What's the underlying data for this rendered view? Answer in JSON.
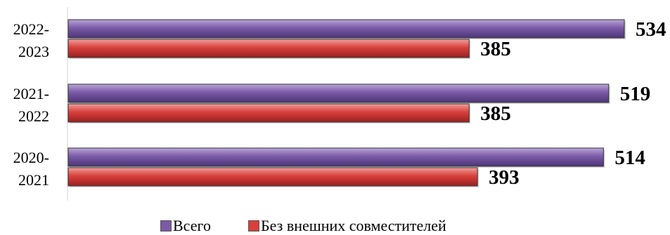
{
  "chart_data": {
    "type": "bar",
    "orientation": "horizontal",
    "categories": [
      "2022-2023",
      "2021-2022",
      "2020-2021"
    ],
    "category_labels": [
      [
        "2022-",
        "2023"
      ],
      [
        "2021-",
        "2022"
      ],
      [
        "2020-",
        "2021"
      ]
    ],
    "series": [
      {
        "name": "Всего",
        "values": [
          534,
          519,
          514
        ],
        "color": "#7b5aa6"
      },
      {
        "name": "Без внешних совместителей",
        "values": [
          385,
          385,
          393
        ],
        "color": "#d9403d"
      }
    ],
    "xlim": [
      0,
      560
    ],
    "grid": false,
    "legend_position": "bottom"
  }
}
